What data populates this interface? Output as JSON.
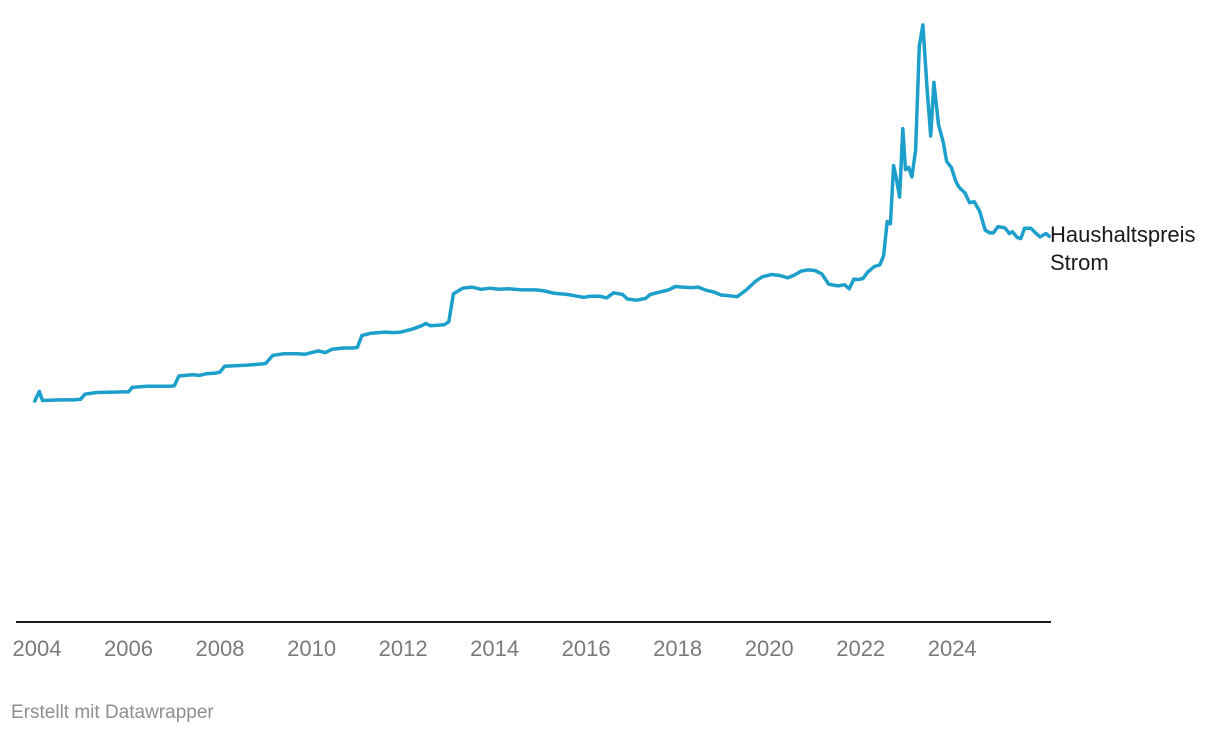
{
  "chart_data": {
    "type": "line",
    "x_unit": "year",
    "x_range": [
      2004,
      2025.7
    ],
    "y_range": [
      0,
      100
    ],
    "y_axis_visible": false,
    "grid": false,
    "x_ticks": [
      "2004",
      "2006",
      "2008",
      "2010",
      "2012",
      "2014",
      "2016",
      "2018",
      "2020",
      "2022",
      "2024"
    ],
    "series": [
      {
        "name": "Haushaltspreis Strom",
        "color": "#1d9fcb",
        "points": [
          [
            2003.95,
            33.5
          ],
          [
            2004.05,
            35.2
          ],
          [
            2004.12,
            33.6
          ],
          [
            2004.5,
            33.7
          ],
          [
            2004.8,
            33.7
          ],
          [
            2004.95,
            33.8
          ],
          [
            2005.05,
            34.7
          ],
          [
            2005.3,
            35.0
          ],
          [
            2005.9,
            35.1
          ],
          [
            2006.0,
            35.1
          ],
          [
            2006.08,
            35.9
          ],
          [
            2006.4,
            36.1
          ],
          [
            2006.9,
            36.1
          ],
          [
            2007.0,
            36.2
          ],
          [
            2007.1,
            37.9
          ],
          [
            2007.4,
            38.1
          ],
          [
            2007.55,
            38.0
          ],
          [
            2007.7,
            38.3
          ],
          [
            2007.9,
            38.4
          ],
          [
            2008.0,
            38.6
          ],
          [
            2008.1,
            39.6
          ],
          [
            2008.6,
            39.8
          ],
          [
            2008.9,
            40.0
          ],
          [
            2009.0,
            40.1
          ],
          [
            2009.15,
            41.5
          ],
          [
            2009.4,
            41.8
          ],
          [
            2009.7,
            41.8
          ],
          [
            2009.85,
            41.7
          ],
          [
            2010.0,
            42.0
          ],
          [
            2010.15,
            42.3
          ],
          [
            2010.3,
            42.0
          ],
          [
            2010.45,
            42.6
          ],
          [
            2010.7,
            42.8
          ],
          [
            2010.9,
            42.8
          ],
          [
            2011.0,
            42.9
          ],
          [
            2011.1,
            45.0
          ],
          [
            2011.3,
            45.4
          ],
          [
            2011.6,
            45.6
          ],
          [
            2011.8,
            45.5
          ],
          [
            2011.95,
            45.6
          ],
          [
            2012.2,
            46.1
          ],
          [
            2012.4,
            46.7
          ],
          [
            2012.5,
            47.1
          ],
          [
            2012.6,
            46.7
          ],
          [
            2012.9,
            46.9
          ],
          [
            2013.0,
            47.4
          ],
          [
            2013.1,
            52.3
          ],
          [
            2013.3,
            53.3
          ],
          [
            2013.5,
            53.5
          ],
          [
            2013.7,
            53.1
          ],
          [
            2013.9,
            53.3
          ],
          [
            2014.1,
            53.1
          ],
          [
            2014.3,
            53.2
          ],
          [
            2014.6,
            53.0
          ],
          [
            2014.9,
            53.0
          ],
          [
            2015.1,
            52.8
          ],
          [
            2015.3,
            52.4
          ],
          [
            2015.6,
            52.2
          ],
          [
            2015.8,
            51.9
          ],
          [
            2015.95,
            51.7
          ],
          [
            2016.1,
            51.9
          ],
          [
            2016.3,
            51.9
          ],
          [
            2016.45,
            51.6
          ],
          [
            2016.6,
            52.5
          ],
          [
            2016.8,
            52.2
          ],
          [
            2016.9,
            51.4
          ],
          [
            2017.1,
            51.2
          ],
          [
            2017.3,
            51.5
          ],
          [
            2017.4,
            52.2
          ],
          [
            2017.6,
            52.6
          ],
          [
            2017.8,
            53.0
          ],
          [
            2017.95,
            53.6
          ],
          [
            2018.1,
            53.5
          ],
          [
            2018.3,
            53.4
          ],
          [
            2018.45,
            53.5
          ],
          [
            2018.6,
            53.0
          ],
          [
            2018.8,
            52.6
          ],
          [
            2018.95,
            52.1
          ],
          [
            2019.1,
            52.0
          ],
          [
            2019.3,
            51.8
          ],
          [
            2019.5,
            53.0
          ],
          [
            2019.7,
            54.5
          ],
          [
            2019.85,
            55.3
          ],
          [
            2020.05,
            55.7
          ],
          [
            2020.25,
            55.5
          ],
          [
            2020.4,
            55.1
          ],
          [
            2020.55,
            55.6
          ],
          [
            2020.7,
            56.3
          ],
          [
            2020.85,
            56.5
          ],
          [
            2021.0,
            56.4
          ],
          [
            2021.15,
            55.8
          ],
          [
            2021.3,
            54.0
          ],
          [
            2021.5,
            53.7
          ],
          [
            2021.65,
            53.9
          ],
          [
            2021.75,
            53.2
          ],
          [
            2021.85,
            54.9
          ],
          [
            2021.95,
            54.8
          ],
          [
            2022.05,
            55.0
          ],
          [
            2022.15,
            56.1
          ],
          [
            2022.3,
            57.1
          ],
          [
            2022.42,
            57.4
          ],
          [
            2022.5,
            59.0
          ],
          [
            2022.58,
            65.0
          ],
          [
            2022.65,
            64.6
          ],
          [
            2022.72,
            74.8
          ],
          [
            2022.78,
            72.5
          ],
          [
            2022.85,
            69.3
          ],
          [
            2022.92,
            81.3
          ],
          [
            2022.98,
            74.1
          ],
          [
            2023.05,
            74.5
          ],
          [
            2023.12,
            72.8
          ],
          [
            2023.2,
            77.5
          ],
          [
            2023.28,
            95.8
          ],
          [
            2023.36,
            99.5
          ],
          [
            2023.45,
            88.5
          ],
          [
            2023.53,
            80.0
          ],
          [
            2023.6,
            89.4
          ],
          [
            2023.7,
            82.0
          ],
          [
            2023.8,
            79.0
          ],
          [
            2023.88,
            75.5
          ],
          [
            2023.98,
            74.5
          ],
          [
            2024.08,
            72.0
          ],
          [
            2024.15,
            71.0
          ],
          [
            2024.28,
            70.0
          ],
          [
            2024.38,
            68.3
          ],
          [
            2024.48,
            68.5
          ],
          [
            2024.6,
            66.8
          ],
          [
            2024.72,
            63.5
          ],
          [
            2024.82,
            63.0
          ],
          [
            2024.9,
            63.0
          ],
          [
            2025.0,
            64.1
          ],
          [
            2025.15,
            63.9
          ],
          [
            2025.25,
            62.9
          ],
          [
            2025.32,
            63.2
          ],
          [
            2025.42,
            62.2
          ],
          [
            2025.5,
            62.0
          ],
          [
            2025.58,
            63.8
          ],
          [
            2025.72,
            63.8
          ],
          [
            2025.82,
            63.0
          ],
          [
            2025.92,
            62.3
          ],
          [
            2026.05,
            62.9
          ],
          [
            2026.12,
            62.4
          ]
        ]
      }
    ],
    "series_label_lines": [
      "Haushaltspreis",
      "Strom"
    ]
  },
  "footer": {
    "credit": "Erstellt mit Datawrapper"
  }
}
